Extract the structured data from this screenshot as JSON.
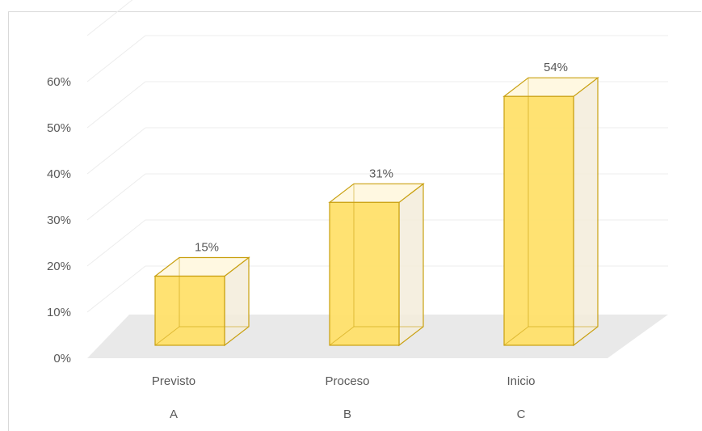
{
  "colors": {
    "bar_front": "#ffe066",
    "bar_top": "#fff8e1",
    "bar_side": "#f3ecda",
    "bar_edge": "#c9a010",
    "floor": "#e9e9e9",
    "grid": "#ececec",
    "text": "#595959"
  },
  "chart_data": {
    "type": "bar",
    "style": "3d-column",
    "categories": [
      [
        "Previsto",
        "A"
      ],
      [
        "Proceso",
        "B"
      ],
      [
        "Inicio",
        "C"
      ]
    ],
    "values": [
      0.15,
      0.31,
      0.54
    ],
    "data_labels": [
      "15%",
      "31%",
      "54%"
    ],
    "y_ticks": [
      "0%",
      "10%",
      "20%",
      "30%",
      "40%",
      "50%",
      "60%"
    ],
    "ylim": [
      0,
      0.6
    ],
    "grid": true,
    "legend": "none",
    "title": "",
    "xlabel": "",
    "ylabel": ""
  }
}
